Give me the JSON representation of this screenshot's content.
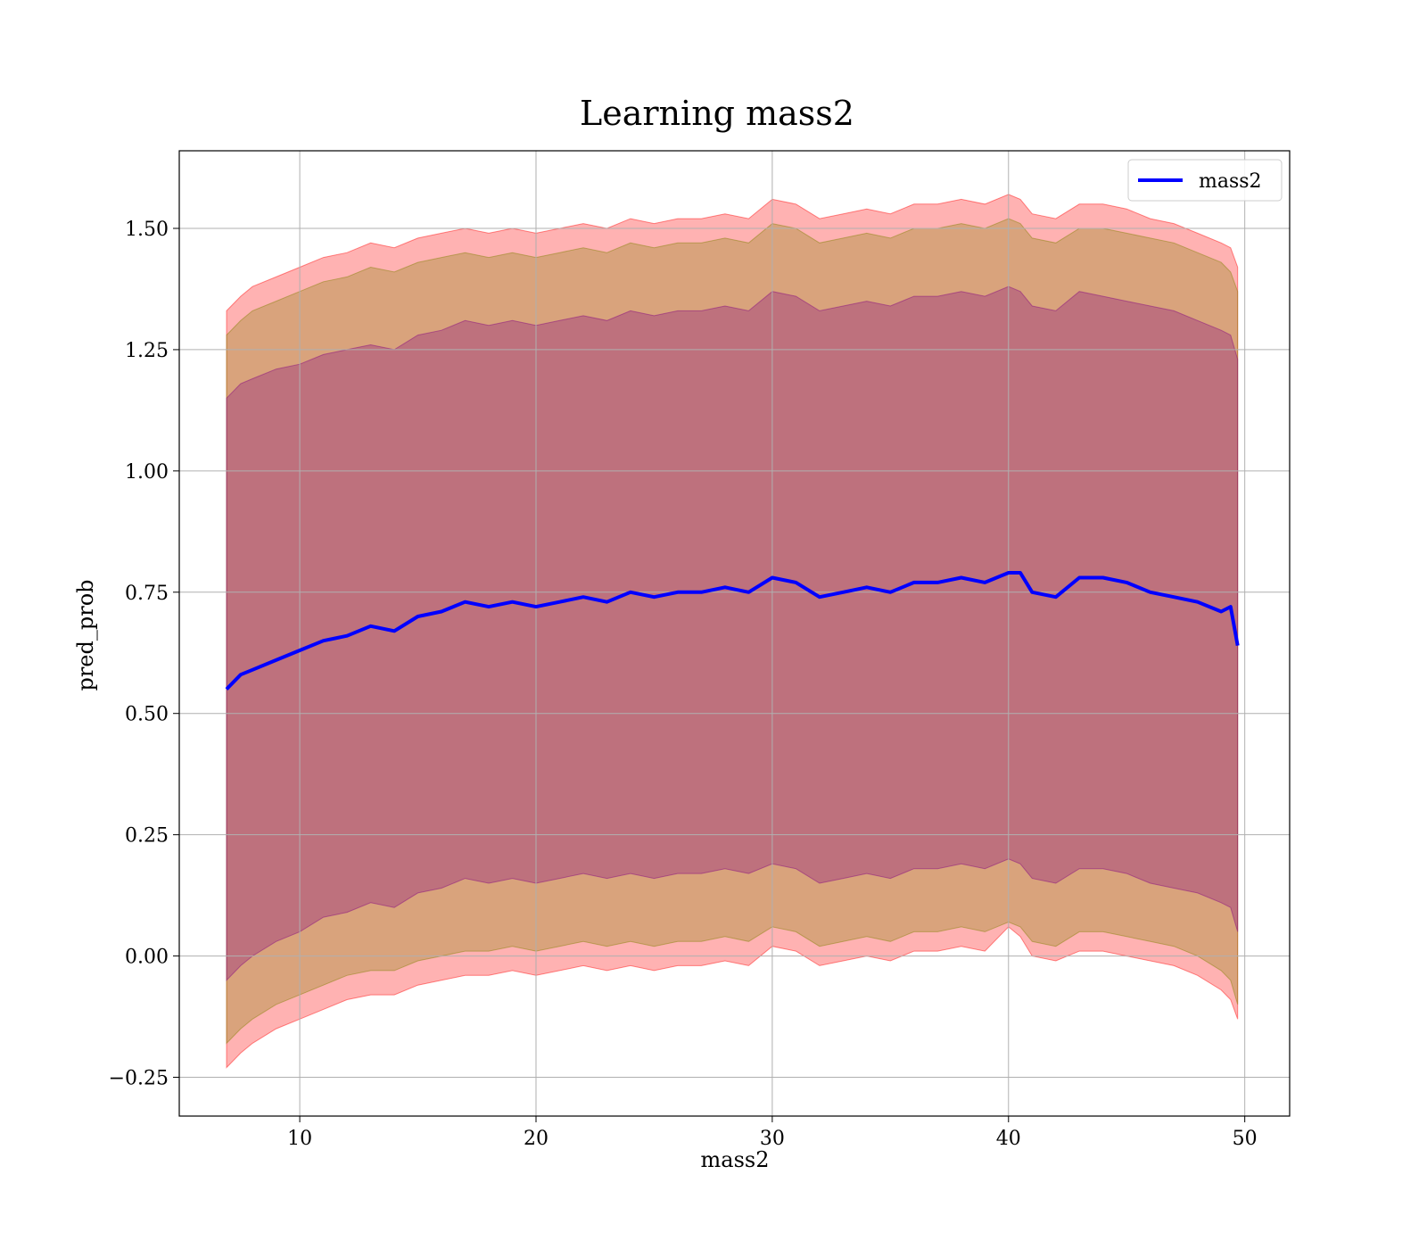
{
  "chart_data": {
    "type": "line",
    "title": "Learning mass2",
    "xlabel": "mass2",
    "ylabel": "pred_prob",
    "xlim": [
      4.9,
      51.9
    ],
    "ylim": [
      -0.33,
      1.66
    ],
    "xticks": [
      10,
      20,
      30,
      40,
      50
    ],
    "yticks": [
      -0.25,
      0.0,
      0.25,
      0.5,
      0.75,
      1.0,
      1.25,
      1.5
    ],
    "ytick_labels": [
      "−0.25",
      "0.00",
      "0.25",
      "0.50",
      "0.75",
      "1.00",
      "1.25",
      "1.50"
    ],
    "grid": true,
    "legend": {
      "placement": "top-right",
      "entries": [
        "mass2"
      ]
    },
    "colors": {
      "line": "#0000ff",
      "band_outer": "#ff0000",
      "band_middle": "#808000",
      "band_inner": "#800080"
    },
    "series": [
      {
        "name": "mass2",
        "x": [
          6.9,
          7.5,
          8.0,
          9.0,
          10.0,
          11.0,
          12.0,
          13.0,
          14.0,
          15.0,
          16.0,
          17.0,
          18.0,
          19.0,
          20.0,
          21.0,
          22.0,
          23.0,
          24.0,
          25.0,
          26.0,
          27.0,
          28.0,
          29.0,
          30.0,
          31.0,
          32.0,
          33.0,
          34.0,
          35.0,
          36.0,
          37.0,
          38.0,
          39.0,
          40.0,
          40.5,
          41.0,
          42.0,
          43.0,
          44.0,
          45.0,
          46.0,
          47.0,
          48.0,
          49.0,
          49.4,
          49.7
        ],
        "y": [
          0.55,
          0.58,
          0.59,
          0.61,
          0.63,
          0.65,
          0.66,
          0.68,
          0.67,
          0.7,
          0.71,
          0.73,
          0.72,
          0.73,
          0.72,
          0.73,
          0.74,
          0.73,
          0.75,
          0.74,
          0.75,
          0.75,
          0.76,
          0.75,
          0.78,
          0.77,
          0.74,
          0.75,
          0.76,
          0.75,
          0.77,
          0.77,
          0.78,
          0.77,
          0.79,
          0.79,
          0.75,
          0.74,
          0.78,
          0.78,
          0.77,
          0.75,
          0.74,
          0.73,
          0.71,
          0.72,
          0.64
        ],
        "band_1sigma": {
          "lower": [
            -0.05,
            -0.02,
            0.0,
            0.03,
            0.05,
            0.08,
            0.09,
            0.11,
            0.1,
            0.13,
            0.14,
            0.16,
            0.15,
            0.16,
            0.15,
            0.16,
            0.17,
            0.16,
            0.17,
            0.16,
            0.17,
            0.17,
            0.18,
            0.17,
            0.19,
            0.18,
            0.15,
            0.16,
            0.17,
            0.16,
            0.18,
            0.18,
            0.19,
            0.18,
            0.2,
            0.19,
            0.16,
            0.15,
            0.18,
            0.18,
            0.17,
            0.15,
            0.14,
            0.13,
            0.11,
            0.1,
            0.05
          ],
          "upper": [
            1.15,
            1.18,
            1.19,
            1.21,
            1.22,
            1.24,
            1.25,
            1.26,
            1.25,
            1.28,
            1.29,
            1.31,
            1.3,
            1.31,
            1.3,
            1.31,
            1.32,
            1.31,
            1.33,
            1.32,
            1.33,
            1.33,
            1.34,
            1.33,
            1.37,
            1.36,
            1.33,
            1.34,
            1.35,
            1.34,
            1.36,
            1.36,
            1.37,
            1.36,
            1.38,
            1.37,
            1.34,
            1.33,
            1.37,
            1.36,
            1.35,
            1.34,
            1.33,
            1.31,
            1.29,
            1.28,
            1.23
          ]
        },
        "band_2sigma": {
          "lower": [
            -0.18,
            -0.15,
            -0.13,
            -0.1,
            -0.08,
            -0.06,
            -0.04,
            -0.03,
            -0.03,
            -0.01,
            0.0,
            0.01,
            0.01,
            0.02,
            0.01,
            0.02,
            0.03,
            0.02,
            0.03,
            0.02,
            0.03,
            0.03,
            0.04,
            0.03,
            0.06,
            0.05,
            0.02,
            0.03,
            0.04,
            0.03,
            0.05,
            0.05,
            0.06,
            0.05,
            0.07,
            0.06,
            0.03,
            0.02,
            0.05,
            0.05,
            0.04,
            0.03,
            0.02,
            0.0,
            -0.03,
            -0.05,
            -0.1
          ],
          "upper": [
            1.28,
            1.31,
            1.33,
            1.35,
            1.37,
            1.39,
            1.4,
            1.42,
            1.41,
            1.43,
            1.44,
            1.45,
            1.44,
            1.45,
            1.44,
            1.45,
            1.46,
            1.45,
            1.47,
            1.46,
            1.47,
            1.47,
            1.48,
            1.47,
            1.51,
            1.5,
            1.47,
            1.48,
            1.49,
            1.48,
            1.5,
            1.5,
            1.51,
            1.5,
            1.52,
            1.51,
            1.48,
            1.47,
            1.5,
            1.5,
            1.49,
            1.48,
            1.47,
            1.45,
            1.43,
            1.41,
            1.37
          ]
        },
        "band_3sigma": {
          "lower": [
            -0.23,
            -0.2,
            -0.18,
            -0.15,
            -0.13,
            -0.11,
            -0.09,
            -0.08,
            -0.08,
            -0.06,
            -0.05,
            -0.04,
            -0.04,
            -0.03,
            -0.04,
            -0.03,
            -0.02,
            -0.03,
            -0.02,
            -0.03,
            -0.02,
            -0.02,
            -0.01,
            -0.02,
            0.02,
            0.01,
            -0.02,
            -0.01,
            0.0,
            -0.01,
            0.01,
            0.01,
            0.02,
            0.01,
            0.06,
            0.04,
            0.0,
            -0.01,
            0.01,
            0.01,
            0.0,
            -0.01,
            -0.02,
            -0.04,
            -0.07,
            -0.09,
            -0.13
          ],
          "upper": [
            1.33,
            1.36,
            1.38,
            1.4,
            1.42,
            1.44,
            1.45,
            1.47,
            1.46,
            1.48,
            1.49,
            1.5,
            1.49,
            1.5,
            1.49,
            1.5,
            1.51,
            1.5,
            1.52,
            1.51,
            1.52,
            1.52,
            1.53,
            1.52,
            1.56,
            1.55,
            1.52,
            1.53,
            1.54,
            1.53,
            1.55,
            1.55,
            1.56,
            1.55,
            1.57,
            1.56,
            1.53,
            1.52,
            1.55,
            1.55,
            1.54,
            1.52,
            1.51,
            1.49,
            1.47,
            1.46,
            1.42
          ]
        }
      }
    ]
  }
}
